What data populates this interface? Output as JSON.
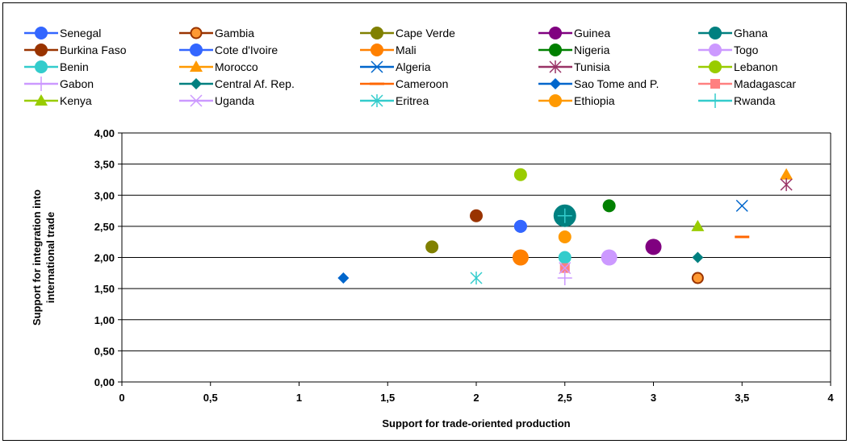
{
  "chart_data": {
    "type": "scatter",
    "xlabel": "Support for trade-oriented production",
    "ylabel_lines": [
      "Support for integration into",
      "international trade"
    ],
    "xlim": [
      0,
      4
    ],
    "ylim": [
      0,
      4
    ],
    "x_ticks": [
      "0",
      "0,5",
      "1",
      "1,5",
      "2",
      "2,5",
      "3",
      "3,5",
      "4"
    ],
    "y_ticks": [
      "0,00",
      "0,50",
      "1,00",
      "1,50",
      "2,00",
      "2,50",
      "3,00",
      "3,50",
      "4,00"
    ],
    "grid": "horizontal",
    "legend_position": "top",
    "series": [
      {
        "name": "Senegal",
        "color": "#3366FF",
        "marker": "circle",
        "x": 2.25,
        "y": 2.5
      },
      {
        "name": "Gambia",
        "color": "#993300",
        "marker": "circle-ring",
        "x": 3.25,
        "y": 1.67
      },
      {
        "name": "Cape Verde",
        "color": "#808000",
        "marker": "circle",
        "x": 1.75,
        "y": 2.17
      },
      {
        "name": "Guinea",
        "color": "#800080",
        "marker": "circle-large",
        "x": 3.0,
        "y": 2.17
      },
      {
        "name": "Ghana",
        "color": "#008080",
        "marker": "circle-xl",
        "x": 2.5,
        "y": 2.67
      },
      {
        "name": "Burkina Faso",
        "color": "#993300",
        "marker": "circle",
        "x": 2.0,
        "y": 2.67
      },
      {
        "name": "Cote d'Ivoire",
        "color": "#3366FF",
        "marker": "circle",
        "x": 2.25,
        "y": 2.5
      },
      {
        "name": "Mali",
        "color": "#FF8000",
        "marker": "circle-large",
        "x": 2.25,
        "y": 2.0
      },
      {
        "name": "Nigeria",
        "color": "#008000",
        "marker": "circle",
        "x": 2.75,
        "y": 2.83
      },
      {
        "name": "Togo",
        "color": "#CC99FF",
        "marker": "circle-large",
        "x": 2.75,
        "y": 2.0
      },
      {
        "name": "Benin",
        "color": "#33CCCC",
        "marker": "circle",
        "x": 2.5,
        "y": 2.0
      },
      {
        "name": "Morocco",
        "color": "#FF9900",
        "marker": "triangle",
        "x": 3.75,
        "y": 3.33
      },
      {
        "name": "Algeria",
        "color": "#0066CC",
        "marker": "x",
        "x": 3.5,
        "y": 2.83
      },
      {
        "name": "Tunisia",
        "color": "#993366",
        "marker": "star",
        "x": 3.75,
        "y": 3.17
      },
      {
        "name": "Lebanon",
        "color": "#99CC00",
        "marker": "circle",
        "x": 2.25,
        "y": 3.33
      },
      {
        "name": "Gabon",
        "color": "#CC99FF",
        "marker": "plus",
        "x": 2.5,
        "y": 1.67
      },
      {
        "name": "Central Af. Rep.",
        "color": "#008080",
        "marker": "diamond",
        "x": 3.25,
        "y": 2.0
      },
      {
        "name": "Cameroon",
        "color": "#FF6600",
        "marker": "dash",
        "x": 3.5,
        "y": 2.33
      },
      {
        "name": "Sao Tome and P.",
        "color": "#0066CC",
        "marker": "diamond",
        "x": 1.25,
        "y": 1.67
      },
      {
        "name": "Madagascar",
        "color": "#FF8080",
        "marker": "square",
        "x": 2.5,
        "y": 1.83
      },
      {
        "name": "Kenya",
        "color": "#99CC00",
        "marker": "triangle",
        "x": 3.25,
        "y": 2.5
      },
      {
        "name": "Uganda",
        "color": "#CC99FF",
        "marker": "x",
        "x": 2.5,
        "y": 1.83
      },
      {
        "name": "Eritrea",
        "color": "#33CCCC",
        "marker": "star",
        "x": 2.0,
        "y": 1.67
      },
      {
        "name": "Ethiopia",
        "color": "#FF9900",
        "marker": "circle",
        "x": 2.5,
        "y": 2.33
      },
      {
        "name": "Rwanda",
        "color": "#33CCCC",
        "marker": "plus",
        "x": 2.5,
        "y": 2.67
      }
    ]
  }
}
